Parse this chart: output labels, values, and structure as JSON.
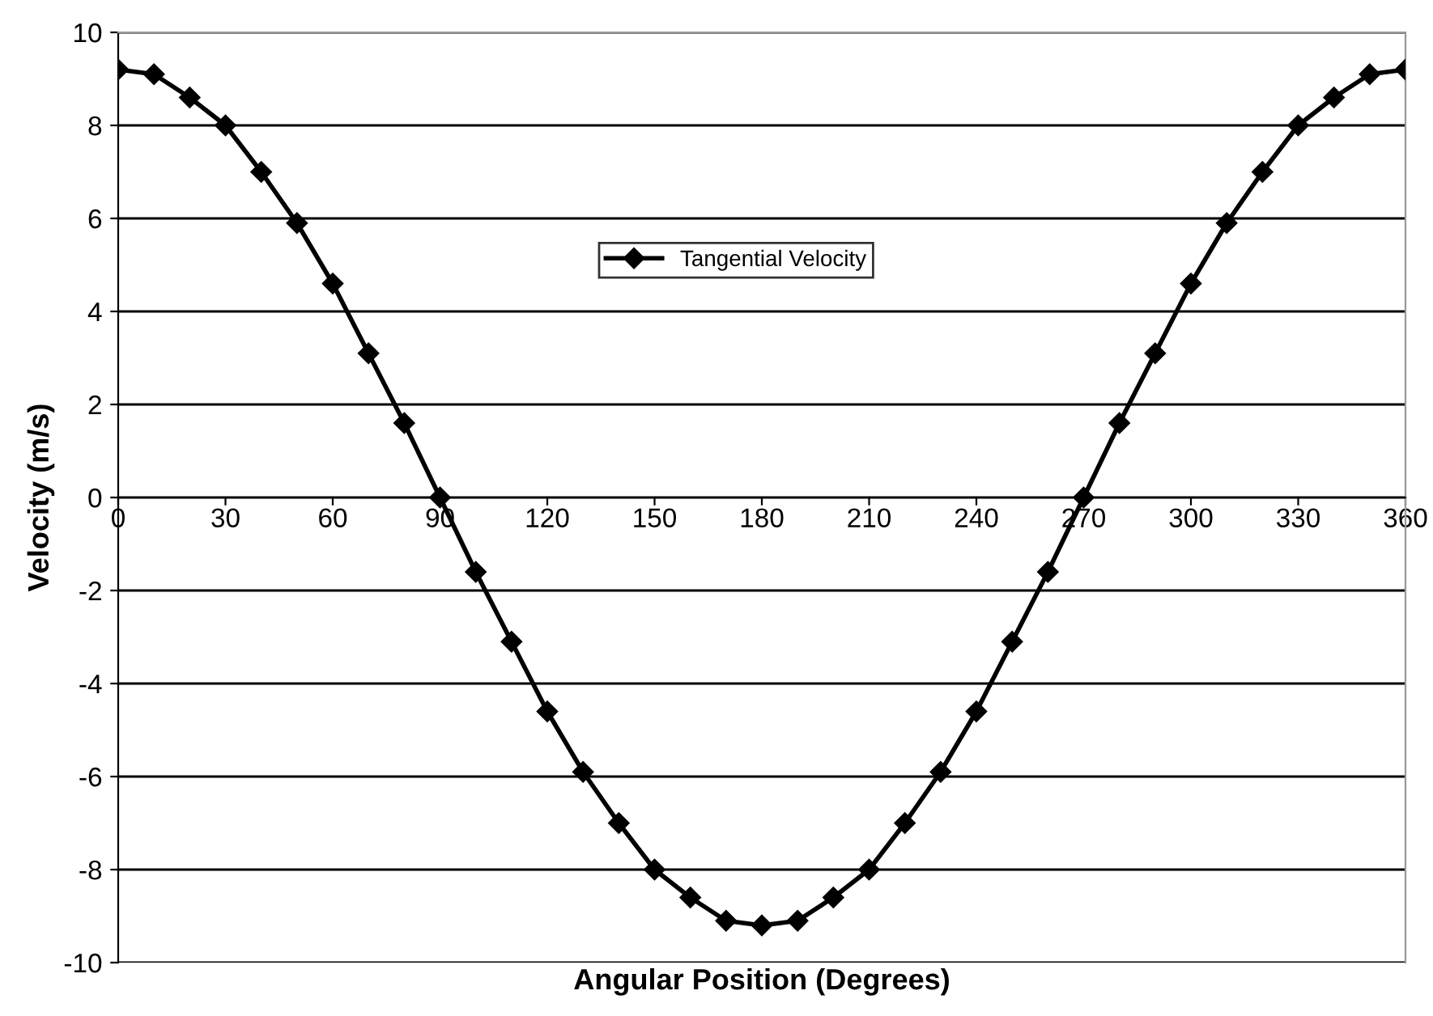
{
  "chart_data": {
    "type": "line",
    "xlabel": "Angular Position (Degrees)",
    "ylabel": "Velocity (m/s)",
    "x": [
      0,
      10,
      20,
      30,
      40,
      50,
      60,
      70,
      80,
      90,
      100,
      110,
      120,
      130,
      140,
      150,
      160,
      170,
      180,
      190,
      200,
      210,
      220,
      230,
      240,
      250,
      260,
      270,
      280,
      290,
      300,
      310,
      320,
      330,
      340,
      350,
      360
    ],
    "series": [
      {
        "name": "Tangential Velocity",
        "color": "#000000",
        "values": [
          9.2,
          9.1,
          8.6,
          8.0,
          7.0,
          5.9,
          4.6,
          3.1,
          1.6,
          0,
          -1.6,
          -3.1,
          -4.6,
          -5.9,
          -7.0,
          -8.0,
          -8.6,
          -9.1,
          -9.2,
          -9.1,
          -8.6,
          -8.0,
          -7.0,
          -5.9,
          -4.6,
          -3.1,
          -1.6,
          0,
          1.6,
          3.1,
          4.6,
          5.9,
          7.0,
          8.0,
          8.6,
          9.1,
          9.2
        ]
      }
    ],
    "xlim": [
      0,
      360
    ],
    "xticks": [
      0,
      30,
      60,
      90,
      120,
      150,
      180,
      210,
      240,
      270,
      300,
      330,
      360
    ],
    "ylim": [
      -10,
      10
    ],
    "yticks": [
      -10,
      -8,
      -6,
      -4,
      -2,
      0,
      2,
      4,
      6,
      8,
      10
    ],
    "grid": "y",
    "legend": "top",
    "marker": "diamond",
    "line_style": "solid"
  }
}
